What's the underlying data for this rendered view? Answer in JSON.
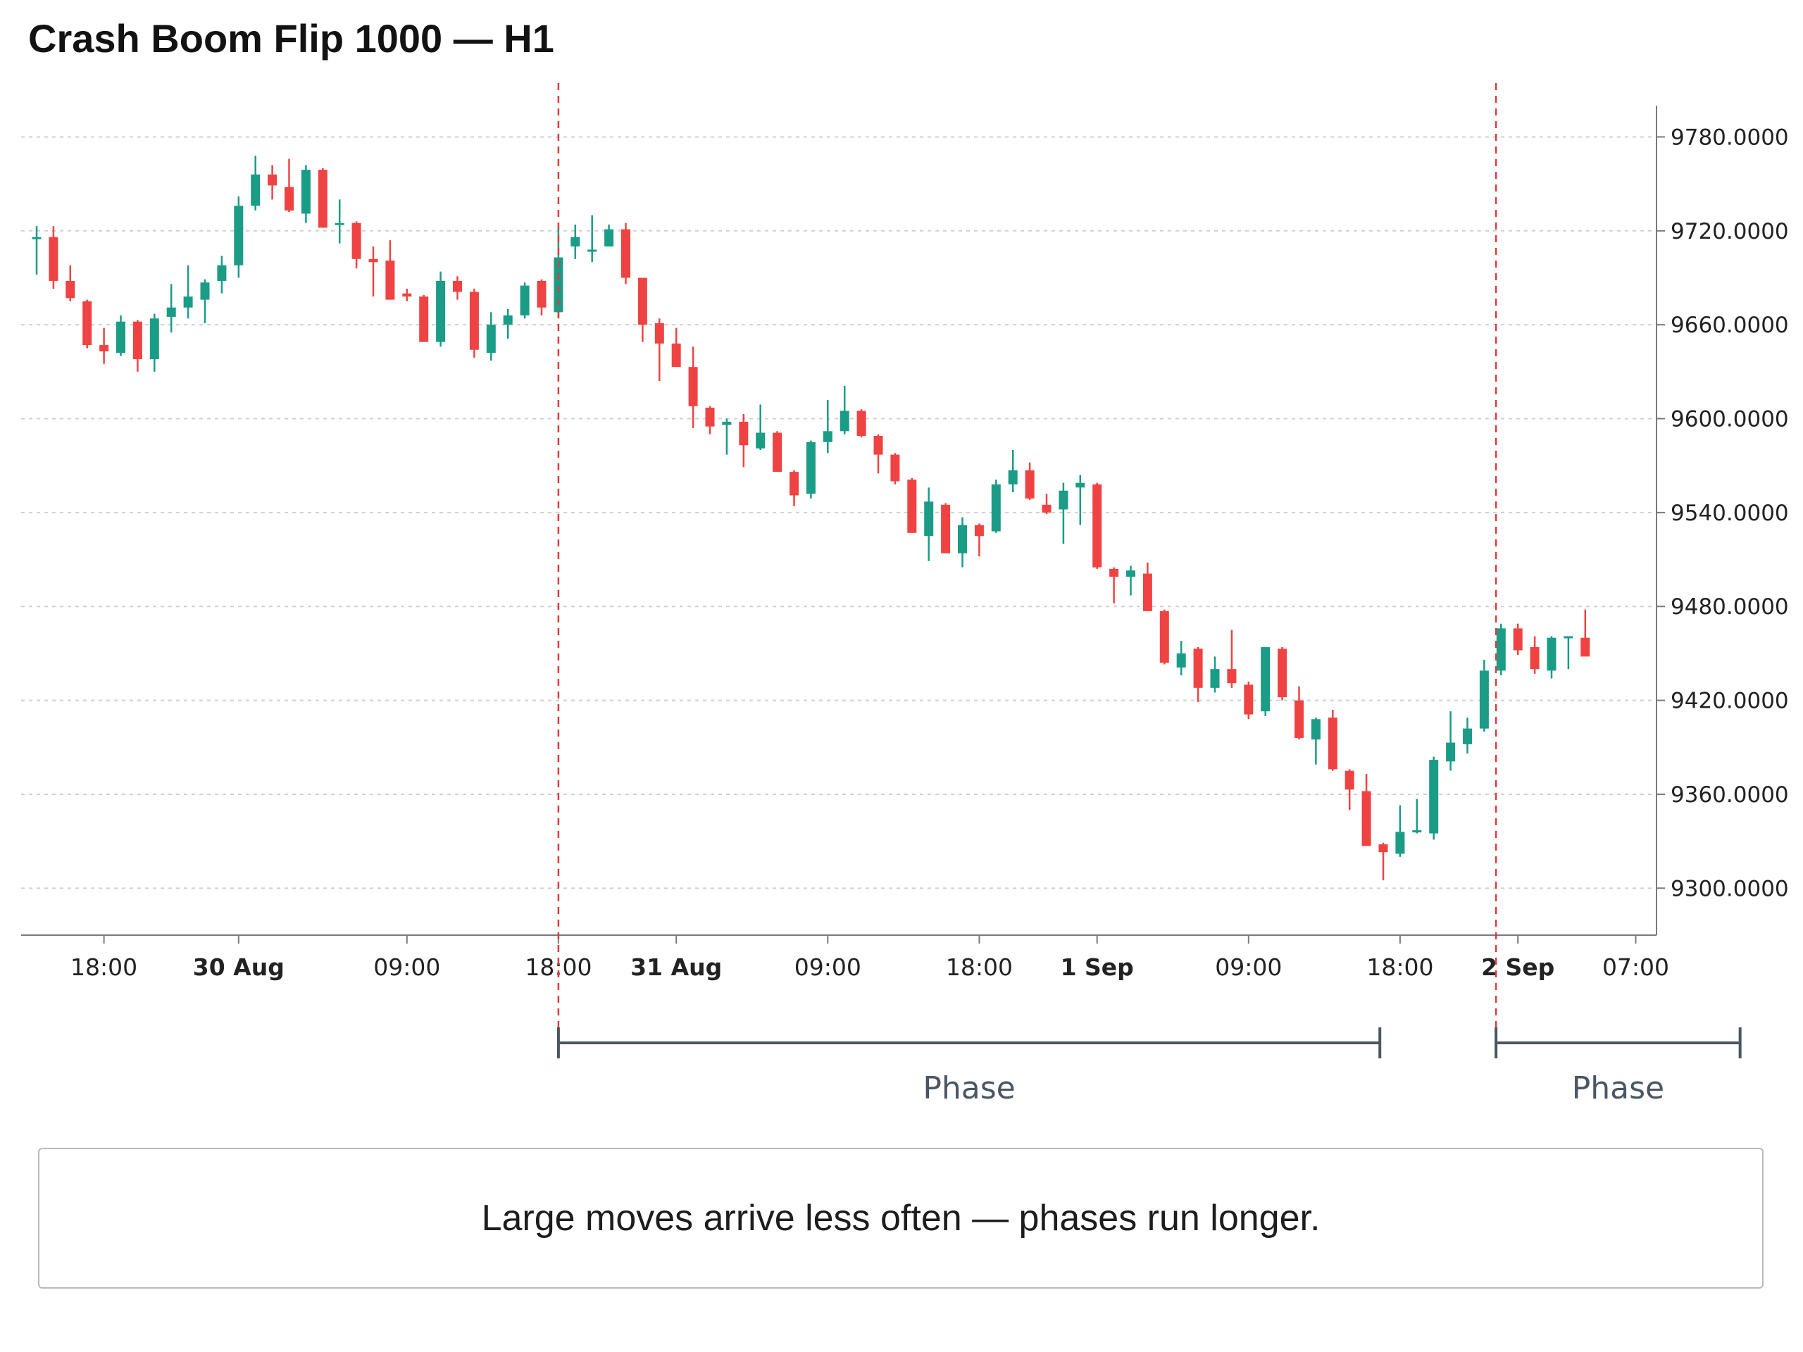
{
  "title": "Crash Boom Flip 1000 — H1",
  "note": "Large moves arrive less often — phases run longer.",
  "colors": {
    "up": "#1a9c86",
    "down": "#ef4343",
    "grid": "#d0d0d0",
    "marker": "#e23b3b",
    "bracket": "#4b5563",
    "axis": "#7a7a7a"
  },
  "chart_data": {
    "type": "candlestick",
    "title": "Crash Boom Flip 1000 — H1",
    "xlabel": "",
    "ylabel": "",
    "ylim": [
      9270,
      9800
    ],
    "grid": true,
    "yticks": [
      9780,
      9720,
      9660,
      9600,
      9540,
      9480,
      9420,
      9360,
      9300
    ],
    "ytick_labels": [
      "9780.0000",
      "9720.0000",
      "9660.0000",
      "9600.0000",
      "9540.0000",
      "9480.0000",
      "9420.0000",
      "9360.0000",
      "9300.0000"
    ],
    "xticks": [
      {
        "label": "18:00",
        "index": 4,
        "bold": false
      },
      {
        "label": "30 Aug",
        "index": 12,
        "bold": true
      },
      {
        "label": "09:00",
        "index": 22,
        "bold": false
      },
      {
        "label": "18:00",
        "index": 31,
        "bold": false
      },
      {
        "label": "31 Aug",
        "index": 38,
        "bold": true
      },
      {
        "label": "09:00",
        "index": 47,
        "bold": false
      },
      {
        "label": "18:00",
        "index": 56,
        "bold": false
      },
      {
        "label": "1 Sep",
        "index": 63,
        "bold": true
      },
      {
        "label": "09:00",
        "index": 72,
        "bold": false
      },
      {
        "label": "18:00",
        "index": 81,
        "bold": false
      },
      {
        "label": "2 Sep",
        "index": 88,
        "bold": true
      },
      {
        "label": "07:00",
        "index": 95,
        "bold": false
      }
    ],
    "candles": [
      [
        9715,
        9723,
        9692,
        9716
      ],
      [
        9716,
        9723,
        9683,
        9688
      ],
      [
        9688,
        9698,
        9675,
        9677
      ],
      [
        9675,
        9676,
        9645,
        9647
      ],
      [
        9647,
        9658,
        9635,
        9643
      ],
      [
        9642,
        9666,
        9640,
        9662
      ],
      [
        9662,
        9663,
        9630,
        9638
      ],
      [
        9638,
        9667,
        9630,
        9664
      ],
      [
        9665,
        9686,
        9655,
        9671
      ],
      [
        9671,
        9698,
        9664,
        9678
      ],
      [
        9676,
        9689,
        9661,
        9687
      ],
      [
        9688,
        9704,
        9680,
        9698
      ],
      [
        9698,
        9742,
        9690,
        9736
      ],
      [
        9736,
        9768,
        9733,
        9756
      ],
      [
        9756,
        9762,
        9740,
        9749
      ],
      [
        9748,
        9766,
        9732,
        9733
      ],
      [
        9731,
        9762,
        9725,
        9759
      ],
      [
        9759,
        9760,
        9722,
        9722
      ],
      [
        9724,
        9740,
        9712,
        9725
      ],
      [
        9725,
        9726,
        9696,
        9702
      ],
      [
        9702,
        9710,
        9678,
        9700
      ],
      [
        9701,
        9714,
        9676,
        9676
      ],
      [
        9680,
        9683,
        9675,
        9678
      ],
      [
        9678,
        9679,
        9649,
        9649
      ],
      [
        9649,
        9694,
        9646,
        9688
      ],
      [
        9688,
        9691,
        9676,
        9681
      ],
      [
        9681,
        9683,
        9639,
        9644
      ],
      [
        9642,
        9668,
        9637,
        9660
      ],
      [
        9660,
        9670,
        9651,
        9666
      ],
      [
        9666,
        9687,
        9664,
        9685
      ],
      [
        9688,
        9689,
        9666,
        9671
      ],
      [
        9668,
        9722,
        9664,
        9703
      ],
      [
        9710,
        9724,
        9702,
        9716
      ],
      [
        9708,
        9730,
        9700,
        9708
      ],
      [
        9710,
        9724,
        9710,
        9721
      ],
      [
        9721,
        9725,
        9686,
        9690
      ],
      [
        9690,
        9690,
        9649,
        9660
      ],
      [
        9661,
        9664,
        9624,
        9648
      ],
      [
        9648,
        9658,
        9634,
        9633
      ],
      [
        9633,
        9646,
        9594,
        9608
      ],
      [
        9607,
        9608,
        9590,
        9595
      ],
      [
        9596,
        9600,
        9577,
        9598
      ],
      [
        9598,
        9603,
        9569,
        9583
      ],
      [
        9581,
        9609,
        9580,
        9591
      ],
      [
        9591,
        9592,
        9566,
        9566
      ],
      [
        9566,
        9567,
        9544,
        9551
      ],
      [
        9552,
        9586,
        9549,
        9585
      ],
      [
        9585,
        9612,
        9578,
        9592
      ],
      [
        9592,
        9621,
        9590,
        9605
      ],
      [
        9605,
        9606,
        9588,
        9589
      ],
      [
        9589,
        9590,
        9565,
        9577
      ],
      [
        9577,
        9578,
        9558,
        9560
      ],
      [
        9561,
        9562,
        9527,
        9527
      ],
      [
        9525,
        9556,
        9509,
        9547
      ],
      [
        9545,
        9546,
        9514,
        9514
      ],
      [
        9514,
        9537,
        9505,
        9532
      ],
      [
        9532,
        9533,
        9512,
        9525
      ],
      [
        9528,
        9561,
        9527,
        9558
      ],
      [
        9558,
        9580,
        9553,
        9567
      ],
      [
        9567,
        9572,
        9548,
        9549
      ],
      [
        9545,
        9552,
        9539,
        9540
      ],
      [
        9542,
        9559,
        9520,
        9554
      ],
      [
        9556,
        9564,
        9532,
        9559
      ],
      [
        9558,
        9559,
        9504,
        9505
      ],
      [
        9504,
        9505,
        9482,
        9499
      ],
      [
        9499,
        9506,
        9487,
        9503
      ],
      [
        9501,
        9508,
        9477,
        9477
      ],
      [
        9477,
        9478,
        9443,
        9444
      ],
      [
        9441,
        9458,
        9436,
        9450
      ],
      [
        9453,
        9454,
        9419,
        9428
      ],
      [
        9428,
        9448,
        9425,
        9440
      ],
      [
        9440,
        9465,
        9428,
        9431
      ],
      [
        9430,
        9432,
        9408,
        9411
      ],
      [
        9413,
        9454,
        9410,
        9454
      ],
      [
        9453,
        9454,
        9420,
        9422
      ],
      [
        9420,
        9429,
        9395,
        9396
      ],
      [
        9395,
        9409,
        9379,
        9408
      ],
      [
        9409,
        9414,
        9375,
        9376
      ],
      [
        9375,
        9376,
        9350,
        9363
      ],
      [
        9362,
        9373,
        9327,
        9327
      ],
      [
        9328,
        9329,
        9305,
        9323
      ],
      [
        9322,
        9353,
        9320,
        9336
      ],
      [
        9336,
        9357,
        9335,
        9337
      ],
      [
        9335,
        9384,
        9331,
        9382
      ],
      [
        9381,
        9413,
        9375,
        9393
      ],
      [
        9392,
        9409,
        9386,
        9402
      ],
      [
        9402,
        9446,
        9400,
        9439
      ],
      [
        9439,
        9469,
        9436,
        9466
      ],
      [
        9466,
        9469,
        9449,
        9452
      ],
      [
        9454,
        9461,
        9437,
        9440
      ],
      [
        9439,
        9461,
        9434,
        9460
      ],
      [
        9460,
        9461,
        9440,
        9461
      ],
      [
        9460,
        9478,
        9451,
        9448
      ]
    ],
    "markers": [
      {
        "type": "vline",
        "index": 31,
        "style": "dashed"
      },
      {
        "type": "vline",
        "index": 86.7,
        "style": "dashed"
      }
    ],
    "phases": [
      {
        "label": "Phase",
        "start": 31,
        "end": 79.8
      },
      {
        "label": "Phase",
        "start": 86.7,
        "end": 101.2
      }
    ]
  }
}
